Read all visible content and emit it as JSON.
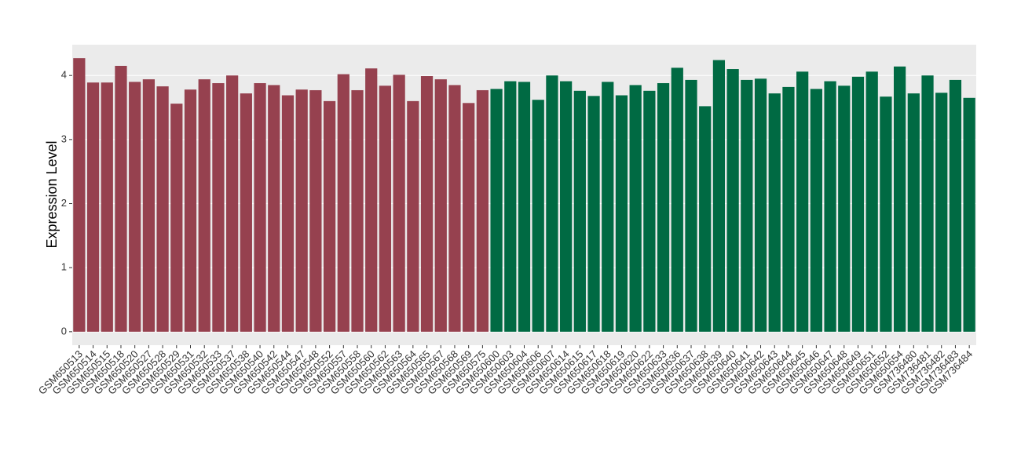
{
  "chart_data": {
    "type": "bar",
    "y_label": "Expression Level",
    "series": [
      {
        "color": "#96414f",
        "categories": [
          "GSM650513",
          "GSM650514",
          "GSM650515",
          "GSM650518",
          "GSM650520",
          "GSM650527",
          "GSM650528",
          "GSM650529",
          "GSM650531",
          "GSM650532",
          "GSM650533",
          "GSM650537",
          "GSM650538",
          "GSM650540",
          "GSM650542",
          "GSM650544",
          "GSM650547",
          "GSM650548",
          "GSM650552",
          "GSM650557",
          "GSM650558",
          "GSM650560",
          "GSM650562",
          "GSM650563",
          "GSM650564",
          "GSM650565",
          "GSM650567",
          "GSM650568",
          "GSM650569",
          "GSM650575"
        ],
        "values": [
          4.27,
          3.89,
          3.89,
          4.15,
          3.9,
          3.94,
          3.83,
          3.56,
          3.78,
          3.94,
          3.88,
          4.0,
          3.72,
          3.88,
          3.85,
          3.69,
          3.78,
          3.77,
          3.6,
          4.02,
          3.77,
          4.11,
          3.84,
          4.01,
          3.6,
          3.99,
          3.94,
          3.85,
          3.57,
          3.77
        ]
      },
      {
        "color": "#006a43",
        "categories": [
          "GSM650600",
          "GSM650603",
          "GSM650604",
          "GSM650606",
          "GSM650607",
          "GSM650614",
          "GSM650615",
          "GSM650617",
          "GSM650618",
          "GSM650619",
          "GSM650620",
          "GSM650622",
          "GSM650633",
          "GSM650636",
          "GSM650637",
          "GSM650638",
          "GSM650639",
          "GSM650640",
          "GSM650641",
          "GSM650642",
          "GSM650643",
          "GSM650644",
          "GSM650645",
          "GSM650646",
          "GSM650647",
          "GSM650648",
          "GSM650649",
          "GSM650651",
          "GSM650652",
          "GSM650654",
          "GSM736480",
          "GSM736481",
          "GSM736482",
          "GSM736483",
          "GSM736484"
        ],
        "values": [
          3.79,
          3.91,
          3.9,
          3.62,
          4.0,
          3.91,
          3.76,
          3.68,
          3.9,
          3.69,
          3.85,
          3.76,
          3.88,
          4.12,
          3.93,
          3.52,
          4.24,
          4.1,
          3.93,
          3.95,
          3.72,
          3.82,
          4.06,
          3.79,
          3.91,
          3.84,
          3.98,
          4.06,
          3.67,
          4.14,
          3.72,
          4.0,
          3.73,
          3.93,
          3.65
        ]
      }
    ],
    "ylim": [
      -0.21,
      4.48
    ],
    "yticks": [
      0,
      1,
      2,
      3,
      4
    ],
    "grid": true
  }
}
